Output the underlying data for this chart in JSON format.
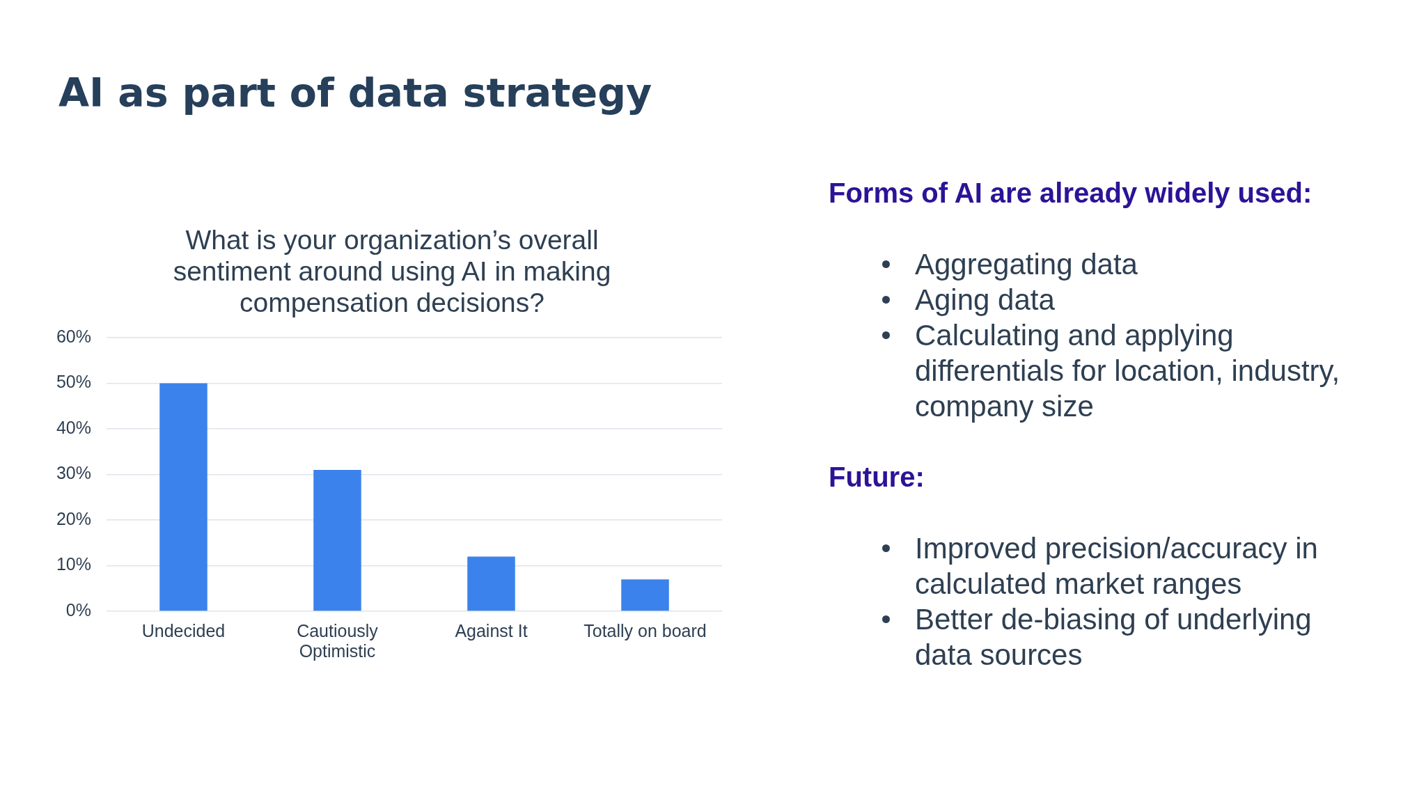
{
  "chart_data": [
    {
      "type": "bar",
      "title": "AI as part of data strategy",
      "subtitle": "What is your organization’s overall sentiment around using AI in making compensation decisions?",
      "categories": [
        "Undecided",
        "Cautiously Optimistic",
        "Against It",
        "Totally on board"
      ],
      "values": [
        50,
        31,
        12,
        7
      ],
      "color": "#3b82ec",
      "ylim": [
        0,
        60
      ],
      "yticks": [
        {
          "value": 0,
          "label": "0%"
        },
        {
          "value": 10,
          "label": "10%"
        },
        {
          "value": 20,
          "label": "20%"
        },
        {
          "value": 30,
          "label": "30%"
        },
        {
          "value": 40,
          "label": "40%"
        },
        {
          "value": 50,
          "label": "50%"
        },
        {
          "value": 60,
          "label": "60%"
        }
      ],
      "grid": "y"
    },
    {
      "type": "other",
      "title": "Forms of AI are already widely used:",
      "annotations": [
        "Aggregating data",
        "Aging data",
        "Calculating and applying differentials for location, industry, company size"
      ]
    },
    {
      "type": "other",
      "title": "Future:",
      "annotations": [
        "Improved precision/accuracy in calculated market ranges",
        "Better de-biasing of underlying data sources"
      ]
    }
  ]
}
